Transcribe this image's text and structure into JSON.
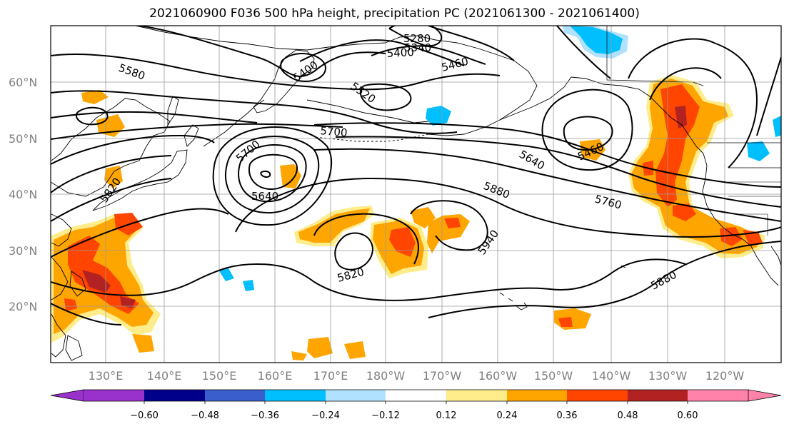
{
  "title": "2021060900 F036 500 hPa height, precipitation PC (2021061300 - 2021061400)",
  "lat_labels": [
    "60°N",
    "50°N",
    "40°N",
    "30°N",
    "20°N"
  ],
  "lon_labels": [
    "130°E",
    "140°E",
    "150°E",
    "160°E",
    "170°E",
    "180°W",
    "170°W",
    "160°W",
    "150°W",
    "140°W",
    "130°W",
    "120°W"
  ],
  "contour_labels": [
    "5280",
    "5340",
    "5400",
    "5400",
    "5460",
    "5520",
    "5580",
    "5700",
    "5700",
    "5640",
    "5640",
    "5460",
    "5880",
    "5760",
    "5820",
    "5820",
    "5940",
    "5880"
  ],
  "colorbar": {
    "ticks": [
      "−0.60",
      "−0.48",
      "−0.36",
      "−0.24",
      "−0.12",
      "0.12",
      "0.24",
      "0.36",
      "0.48",
      "0.60"
    ],
    "colors": [
      "#9932cc",
      "#00008b",
      "#3a5fcd",
      "#00bfff",
      "#b0e2ff",
      "#ffffff",
      "#ffec8b",
      "#ffa500",
      "#ff4500",
      "#b22222",
      "#ff82ab"
    ]
  },
  "fill_colors": {
    "pos1": "#ffec8b",
    "pos2": "#ffa500",
    "pos3": "#ff4500",
    "pos4": "#b22222",
    "neg1": "#b0e2ff",
    "neg2": "#00bfff"
  }
}
